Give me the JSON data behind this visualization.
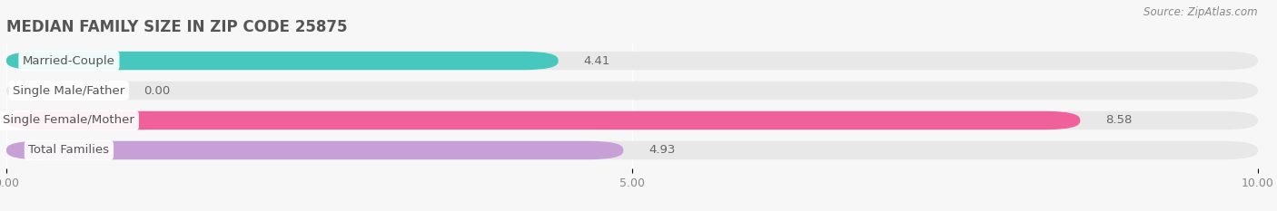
{
  "title": "MEDIAN FAMILY SIZE IN ZIP CODE 25875",
  "source": "Source: ZipAtlas.com",
  "categories": [
    "Married-Couple",
    "Single Male/Father",
    "Single Female/Mother",
    "Total Families"
  ],
  "values": [
    4.41,
    0.0,
    8.58,
    4.93
  ],
  "bar_colors": [
    "#46c8be",
    "#a8b8e8",
    "#f0609a",
    "#c8a0d8"
  ],
  "background_color": "#f7f7f7",
  "bar_bg_color": "#e8e8e8",
  "xlim": [
    0,
    10
  ],
  "xtick_labels": [
    "0.00",
    "5.00",
    "10.00"
  ],
  "bar_height": 0.62,
  "label_fontsize": 9.5,
  "value_fontsize": 9.5,
  "title_fontsize": 12,
  "source_fontsize": 8.5,
  "label_text_color": "#555555"
}
